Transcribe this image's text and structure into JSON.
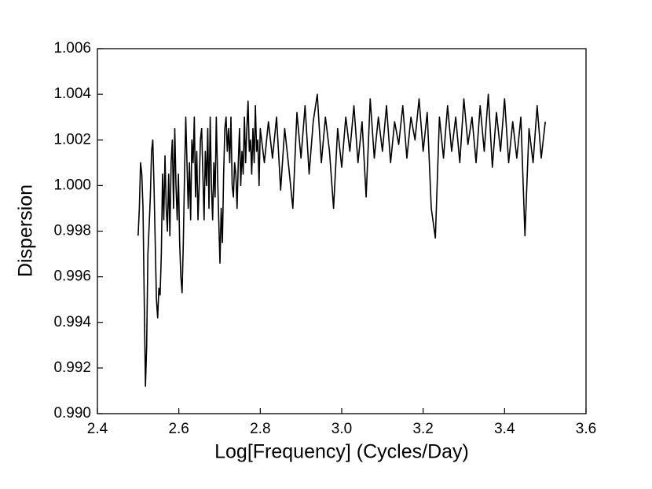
{
  "chart_data": {
    "type": "line",
    "xlabel": "Log[Frequency] (Cycles/Day)",
    "ylabel": "Dispersion",
    "xlim": [
      2.4,
      3.6
    ],
    "ylim": [
      0.99,
      1.006
    ],
    "xticks": [
      2.4,
      2.6,
      2.8,
      {
        "value": 3,
        "label": "3.0"
      },
      3.2,
      3.4,
      3.6
    ],
    "yticks": [
      {
        "value": 0.99,
        "label": "0.990"
      },
      0.992,
      0.994,
      0.996,
      0.998,
      {
        "value": 1,
        "label": "1.000"
      },
      1.002,
      1.004,
      1.006
    ],
    "series": [
      {
        "color": "#000000",
        "x": [
          2.5,
          2.503,
          2.506,
          2.509,
          2.512,
          2.515,
          2.518,
          2.521,
          2.524,
          2.527,
          2.53,
          2.533,
          2.536,
          2.539,
          2.542,
          2.545,
          2.548,
          2.551,
          2.554,
          2.557,
          2.56,
          2.563,
          2.566,
          2.569,
          2.572,
          2.575,
          2.578,
          2.581,
          2.584,
          2.587,
          2.59,
          2.593,
          2.596,
          2.599,
          2.602,
          2.605,
          2.608,
          2.611,
          2.614,
          2.617,
          2.62,
          2.623,
          2.626,
          2.629,
          2.632,
          2.635,
          2.638,
          2.641,
          2.644,
          2.647,
          2.65,
          2.653,
          2.656,
          2.659,
          2.662,
          2.665,
          2.668,
          2.671,
          2.674,
          2.677,
          2.68,
          2.683,
          2.686,
          2.689,
          2.692,
          2.695,
          2.698,
          2.701,
          2.704,
          2.707,
          2.71,
          2.713,
          2.716,
          2.719,
          2.722,
          2.725,
          2.728,
          2.731,
          2.734,
          2.737,
          2.74,
          2.743,
          2.746,
          2.749,
          2.752,
          2.755,
          2.758,
          2.761,
          2.764,
          2.767,
          2.77,
          2.773,
          2.776,
          2.779,
          2.782,
          2.785,
          2.788,
          2.791,
          2.794,
          2.797,
          2.8,
          2.81,
          2.82,
          2.83,
          2.84,
          2.85,
          2.86,
          2.87,
          2.88,
          2.89,
          2.9,
          2.91,
          2.92,
          2.93,
          2.94,
          2.95,
          2.96,
          2.97,
          2.98,
          2.99,
          3.0,
          3.01,
          3.02,
          3.03,
          3.04,
          3.05,
          3.06,
          3.07,
          3.08,
          3.09,
          3.1,
          3.11,
          3.12,
          3.13,
          3.14,
          3.15,
          3.16,
          3.17,
          3.18,
          3.19,
          3.2,
          3.21,
          3.22,
          3.23,
          3.24,
          3.25,
          3.26,
          3.27,
          3.28,
          3.29,
          3.3,
          3.31,
          3.32,
          3.33,
          3.34,
          3.35,
          3.36,
          3.37,
          3.38,
          3.39,
          3.4,
          3.41,
          3.42,
          3.43,
          3.44,
          3.45,
          3.46,
          3.47,
          3.48,
          3.49,
          3.5
        ],
        "values": [
          0.9978,
          0.999,
          1.001,
          1.0005,
          0.999,
          0.995,
          0.9912,
          0.993,
          0.997,
          0.9982,
          0.9995,
          1.0015,
          1.002,
          1.0,
          0.9975,
          0.995,
          0.9942,
          0.9955,
          0.9952,
          0.997,
          1.0005,
          0.9985,
          1.0013,
          0.999,
          0.998,
          1.0005,
          0.9978,
          1.001,
          1.002,
          0.999,
          1.0025,
          1.0,
          0.9985,
          1.0005,
          0.9975,
          0.996,
          0.9953,
          0.9975,
          1.0005,
          1.003,
          1.001,
          0.999,
          1.001,
          0.9985,
          1.002,
          1.001,
          1.003,
          0.9995,
          1.0015,
          0.9985,
          1.0,
          1.002,
          1.0025,
          1.0005,
          0.9985,
          1.0015,
          1.0,
          1.0025,
          0.999,
          1.003,
          1.0,
          0.9985,
          1.001,
          0.9995,
          1.003,
          1.0005,
          0.9985,
          0.9966,
          0.999,
          0.9975,
          1.0005,
          1.0025,
          1.003,
          1.0015,
          1.0025,
          1.001,
          1.003,
          1.0,
          0.9995,
          1.001,
          1.0005,
          0.999,
          1.001,
          1.0025,
          1.0,
          1.0015,
          1.0005,
          1.003,
          1.001,
          1.0025,
          1.0037,
          1.0015,
          1.002,
          1.0005,
          1.0025,
          1.001,
          1.0035,
          1.0015,
          1.002,
          1.0,
          1.0025,
          1.001,
          1.0028,
          1.0012,
          1.003,
          0.9998,
          1.0025,
          1.0008,
          0.999,
          1.0032,
          1.0012,
          1.0035,
          1.0005,
          1.0028,
          1.004,
          1.001,
          1.003,
          1.0015,
          0.999,
          1.0025,
          1.0008,
          1.003,
          1.0015,
          1.0035,
          1.001,
          1.0028,
          0.9995,
          1.0038,
          1.0012,
          1.003,
          1.0015,
          1.0035,
          1.001,
          1.0028,
          1.0018,
          1.0035,
          1.0012,
          1.003,
          1.002,
          1.0038,
          1.0015,
          1.0032,
          0.999,
          0.9977,
          1.003,
          1.0012,
          1.0035,
          1.0015,
          1.003,
          1.001,
          1.0038,
          1.0018,
          1.003,
          1.001,
          1.0035,
          1.0015,
          1.004,
          1.0008,
          1.0032,
          1.0015,
          1.0038,
          1.001,
          1.0028,
          1.0012,
          1.003,
          0.9978,
          1.0025,
          1.001,
          1.0035,
          1.0012,
          1.0028
        ]
      }
    ]
  }
}
